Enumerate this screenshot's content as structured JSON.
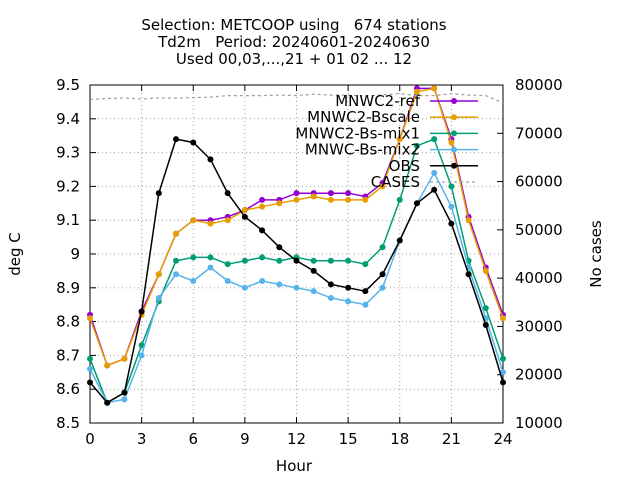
{
  "chart_data": {
    "type": "line",
    "title_lines": [
      "Selection: METCOOP using   674 stations",
      "Td2m   Period: 20240601-20240630",
      "Used 00,03,...,21 + 01 02 ... 12"
    ],
    "xlabel": "Hour",
    "ylabel": "deg C",
    "y2label": "No cases",
    "xlim": [
      0,
      24
    ],
    "ylim": [
      8.5,
      9.5
    ],
    "y2lim": [
      10000,
      80000
    ],
    "xticks": [
      0,
      3,
      6,
      9,
      12,
      15,
      18,
      21,
      24
    ],
    "yticks": [
      8.5,
      8.6,
      8.7,
      8.8,
      8.9,
      9,
      9.1,
      9.2,
      9.3,
      9.4,
      9.5
    ],
    "ytick_labels": [
      "8.5",
      "8.6",
      "8.7",
      "8.8",
      "8.9",
      "9",
      "9.1",
      "9.2",
      "9.3",
      "9.4",
      "9.5"
    ],
    "y2ticks": [
      10000,
      20000,
      30000,
      40000,
      50000,
      60000,
      70000,
      80000
    ],
    "grid": true,
    "legend_position": "top-right",
    "x": [
      0,
      1,
      2,
      3,
      4,
      5,
      6,
      7,
      8,
      9,
      10,
      11,
      12,
      13,
      14,
      15,
      16,
      17,
      18,
      19,
      20,
      21,
      22,
      23,
      24
    ],
    "series": [
      {
        "name": "MNWC2-ref",
        "color": "#9400d3",
        "marker": "circle",
        "values": [
          8.82,
          8.67,
          8.69,
          8.83,
          8.94,
          9.06,
          9.1,
          9.1,
          9.11,
          9.13,
          9.16,
          9.16,
          9.18,
          9.18,
          9.18,
          9.18,
          9.17,
          9.21,
          9.34,
          9.49,
          9.49,
          9.34,
          9.11,
          8.96,
          8.82
        ]
      },
      {
        "name": "MNWC2-Bscale",
        "color": "#e69f00",
        "marker": "circle",
        "values": [
          8.81,
          8.67,
          8.69,
          8.82,
          8.94,
          9.06,
          9.1,
          9.09,
          9.1,
          9.13,
          9.14,
          9.15,
          9.16,
          9.17,
          9.16,
          9.16,
          9.16,
          9.2,
          9.34,
          9.48,
          9.49,
          9.33,
          9.1,
          8.95,
          8.81
        ]
      },
      {
        "name": "MNWC2-Bs-mix1",
        "color": "#009e73",
        "marker": "circle",
        "values": [
          8.69,
          8.56,
          8.59,
          8.73,
          8.86,
          8.98,
          8.99,
          8.99,
          8.97,
          8.98,
          8.99,
          8.98,
          8.99,
          8.98,
          8.98,
          8.98,
          8.97,
          9.02,
          9.16,
          9.32,
          9.34,
          9.2,
          8.98,
          8.84,
          8.69
        ]
      },
      {
        "name": "MNWC-Bs-mix2",
        "color": "#56b4e9",
        "marker": "circle",
        "values": [
          8.66,
          8.56,
          8.57,
          8.7,
          8.87,
          8.94,
          8.92,
          8.96,
          8.92,
          8.9,
          8.92,
          8.91,
          8.9,
          8.89,
          8.87,
          8.86,
          8.85,
          8.9,
          9.04,
          9.15,
          9.24,
          9.14,
          8.96,
          8.81,
          8.65
        ]
      },
      {
        "name": "OBS",
        "color": "#000000",
        "marker": "circle",
        "values": [
          8.62,
          8.56,
          8.59,
          8.83,
          9.18,
          9.34,
          9.33,
          9.28,
          9.18,
          9.11,
          9.07,
          9.02,
          8.98,
          8.95,
          8.91,
          8.9,
          8.89,
          8.94,
          9.04,
          9.15,
          9.19,
          9.09,
          8.94,
          8.79,
          8.62
        ]
      },
      {
        "name": "CASES",
        "color": "#a0a0a0",
        "marker": "none",
        "dashed": true,
        "axis": "y2",
        "values": [
          77000,
          77200,
          77300,
          77100,
          77300,
          77300,
          77400,
          77500,
          77800,
          77800,
          77800,
          77900,
          77800,
          78100,
          77900,
          77900,
          77700,
          78000,
          78200,
          77800,
          77800,
          78200,
          77900,
          77800,
          76300
        ]
      }
    ]
  }
}
